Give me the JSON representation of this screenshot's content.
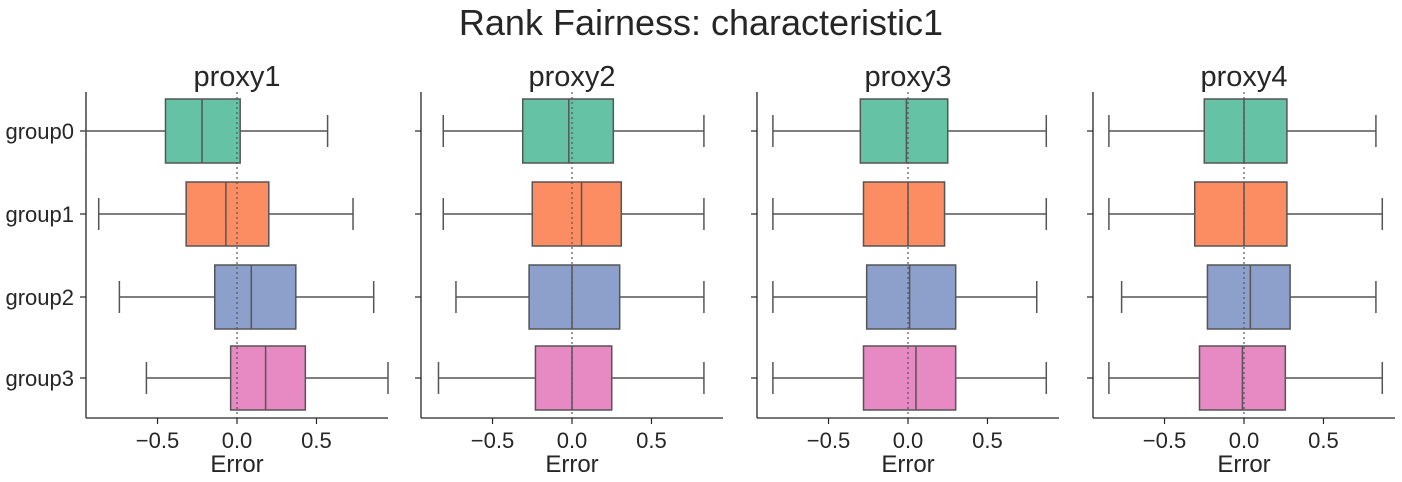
{
  "figure": {
    "title": "Rank Fairness: characteristic1"
  },
  "chart_data": {
    "type": "box",
    "xlabel": "Error",
    "xlim": [
      -0.95,
      0.95
    ],
    "xticks": [
      -0.5,
      0.0,
      0.5
    ],
    "xtick_labels": [
      "−0.5",
      "0.0",
      "0.5"
    ],
    "categories": [
      "group0",
      "group1",
      "group2",
      "group3"
    ],
    "colors": [
      "#66c2a5",
      "#fc8d62",
      "#8da0cb",
      "#e78ac3"
    ],
    "reference_line": 0.0,
    "panels": [
      {
        "title": "proxy1",
        "boxes": [
          {
            "group": "group0",
            "whislo": -0.95,
            "q1": -0.45,
            "med": -0.22,
            "q3": 0.02,
            "whishi": 0.57
          },
          {
            "group": "group1",
            "whislo": -0.87,
            "q1": -0.32,
            "med": -0.07,
            "q3": 0.2,
            "whishi": 0.73
          },
          {
            "group": "group2",
            "whislo": -0.74,
            "q1": -0.14,
            "med": 0.09,
            "q3": 0.37,
            "whishi": 0.86
          },
          {
            "group": "group3",
            "whislo": -0.57,
            "q1": -0.04,
            "med": 0.18,
            "q3": 0.43,
            "whishi": 0.95
          }
        ]
      },
      {
        "title": "proxy2",
        "boxes": [
          {
            "group": "group0",
            "whislo": -0.81,
            "q1": -0.31,
            "med": -0.02,
            "q3": 0.26,
            "whishi": 0.83
          },
          {
            "group": "group1",
            "whislo": -0.81,
            "q1": -0.25,
            "med": 0.06,
            "q3": 0.31,
            "whishi": 0.83
          },
          {
            "group": "group2",
            "whislo": -0.73,
            "q1": -0.27,
            "med": 0.0,
            "q3": 0.3,
            "whishi": 0.83
          },
          {
            "group": "group3",
            "whislo": -0.84,
            "q1": -0.23,
            "med": 0.0,
            "q3": 0.25,
            "whishi": 0.83
          }
        ]
      },
      {
        "title": "proxy3",
        "boxes": [
          {
            "group": "group0",
            "whislo": -0.85,
            "q1": -0.3,
            "med": -0.01,
            "q3": 0.25,
            "whishi": 0.87
          },
          {
            "group": "group1",
            "whislo": -0.85,
            "q1": -0.28,
            "med": 0.0,
            "q3": 0.23,
            "whishi": 0.87
          },
          {
            "group": "group2",
            "whislo": -0.85,
            "q1": -0.26,
            "med": 0.01,
            "q3": 0.3,
            "whishi": 0.81
          },
          {
            "group": "group3",
            "whislo": -0.85,
            "q1": -0.28,
            "med": 0.05,
            "q3": 0.3,
            "whishi": 0.87
          }
        ]
      },
      {
        "title": "proxy4",
        "boxes": [
          {
            "group": "group0",
            "whislo": -0.85,
            "q1": -0.25,
            "med": 0.0,
            "q3": 0.27,
            "whishi": 0.83
          },
          {
            "group": "group1",
            "whislo": -0.85,
            "q1": -0.31,
            "med": 0.0,
            "q3": 0.27,
            "whishi": 0.87
          },
          {
            "group": "group2",
            "whislo": -0.77,
            "q1": -0.23,
            "med": 0.04,
            "q3": 0.29,
            "whishi": 0.83
          },
          {
            "group": "group3",
            "whislo": -0.85,
            "q1": -0.28,
            "med": -0.01,
            "q3": 0.26,
            "whishi": 0.87
          }
        ]
      }
    ]
  }
}
